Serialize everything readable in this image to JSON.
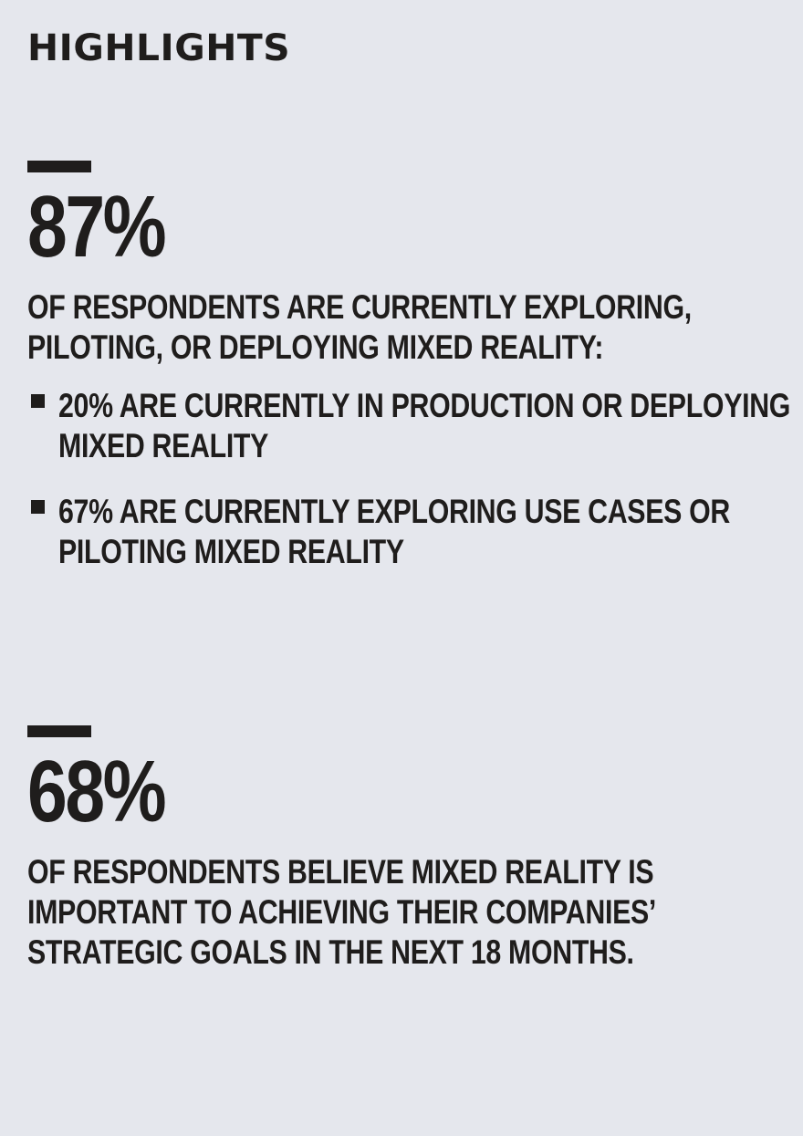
{
  "heading": "HIGHLIGHTS",
  "highlights": [
    {
      "stat": "87%",
      "description": "OF RESPONDENTS ARE CURRENTLY EXPLORING, PILOTING, OR DEPLOYING MIXED REALITY:",
      "bullets": [
        "20% ARE CURRENTLY IN PRODUCTION OR DEPLOYING MIXED REALITY",
        "67% ARE CURRENTLY EXPLORING USE CASES OR PILOTING MIXED REALITY"
      ]
    },
    {
      "stat": "68%",
      "description": "OF RESPONDENTS BELIEVE MIXED REALITY IS IMPORTANT TO ACHIEVING THEIR COMPANIES’ STRATEGIC GOALS IN THE NEXT 18 MONTHS."
    }
  ],
  "colors": {
    "background": "#e5e7ed",
    "text": "#1f1d1c"
  }
}
